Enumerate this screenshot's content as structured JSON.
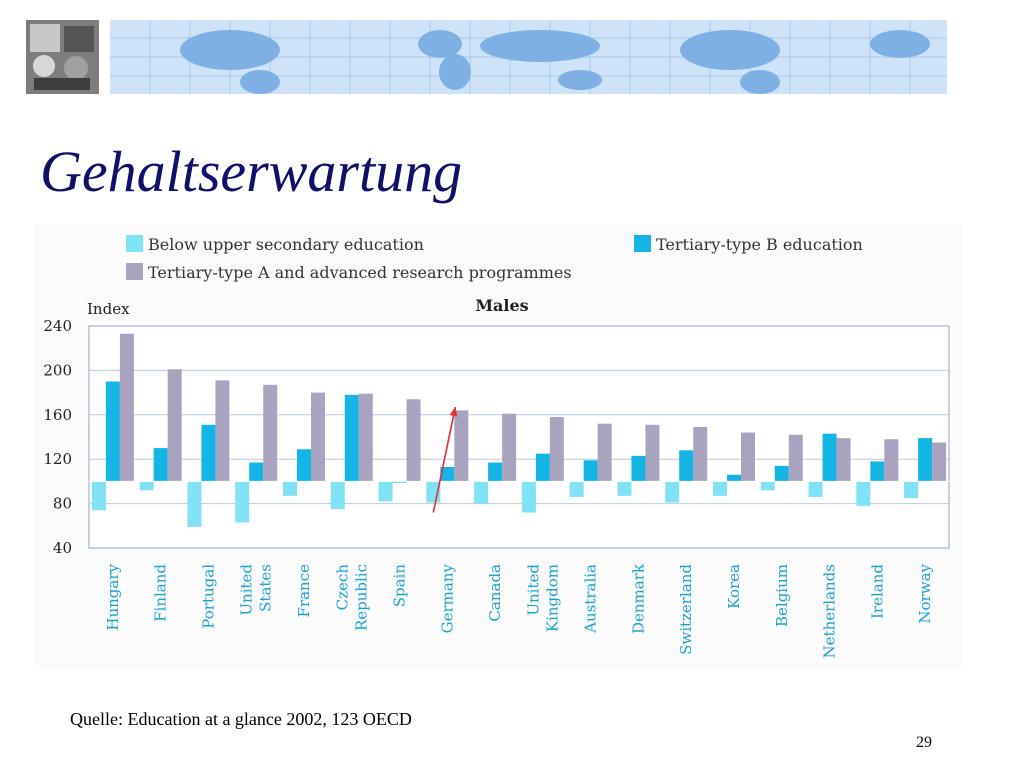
{
  "slide": {
    "title": "Gehaltserwartung",
    "source": "Quelle: Education at a glance 2002, 123 OECD",
    "page_number": "29"
  },
  "chart_data": {
    "type": "bar",
    "title": "Males",
    "ylabel": "Index",
    "ylim": [
      40,
      240
    ],
    "baseline": 100,
    "yticks": [
      "40",
      "80",
      "120",
      "160",
      "200",
      "240"
    ],
    "grid": true,
    "legend_position": "top",
    "categories": [
      [
        "Hungary"
      ],
      [
        "Finland"
      ],
      [
        "Portugal"
      ],
      [
        "United",
        "States"
      ],
      [
        "France"
      ],
      [
        "Czech",
        "Republic"
      ],
      [
        "Spain"
      ],
      [
        "Germany"
      ],
      [
        "Canada"
      ],
      [
        "United",
        "Kingdom"
      ],
      [
        "Australia"
      ],
      [
        "Denmark"
      ],
      [
        "Switzerland"
      ],
      [
        "Korea"
      ],
      [
        "Belgium"
      ],
      [
        "Netherlands"
      ],
      [
        "Ireland"
      ],
      [
        "Norway"
      ]
    ],
    "series": [
      {
        "name": "Below upper secondary education",
        "color": "#7fe2f5",
        "values": [
          74,
          92,
          59,
          63,
          87,
          75,
          82,
          81,
          80,
          72,
          86,
          87,
          81,
          87,
          92,
          86,
          78,
          85
        ]
      },
      {
        "name": "Tertiary-type B education",
        "color": "#14b4e4",
        "values": [
          190,
          130,
          151,
          117,
          129,
          178,
          99,
          113,
          117,
          125,
          119,
          123,
          128,
          106,
          114,
          143,
          118,
          139
        ]
      },
      {
        "name": "Tertiary-type A and advanced research programmes",
        "color": "#a8a4c0",
        "values": [
          233,
          201,
          191,
          187,
          180,
          179,
          174,
          164,
          161,
          158,
          152,
          151,
          149,
          144,
          142,
          139,
          138,
          135
        ]
      }
    ],
    "annotation": {
      "type": "red-arrow",
      "color": "#e03030",
      "from": {
        "category": "Germany",
        "value": 72
      },
      "to": {
        "category": "Germany",
        "value": 167
      }
    }
  }
}
